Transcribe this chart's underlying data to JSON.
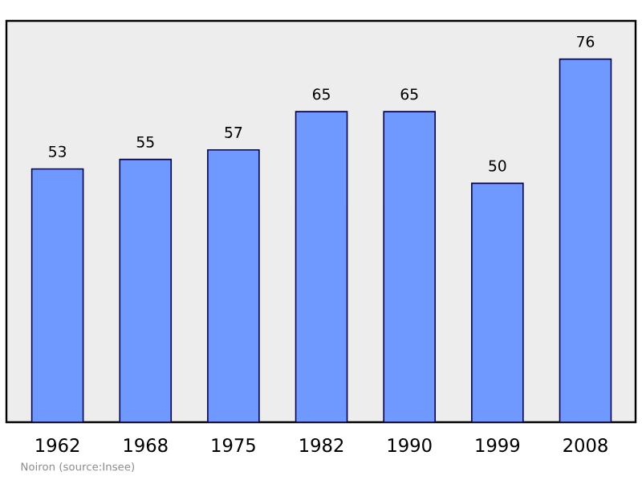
{
  "chart_data": {
    "type": "bar",
    "categories": [
      "1962",
      "1968",
      "1975",
      "1982",
      "1990",
      "1999",
      "2008"
    ],
    "values": [
      53,
      55,
      57,
      65,
      65,
      50,
      76
    ],
    "color": "#7099ff",
    "ylim": [
      0,
      84
    ],
    "data_labels": true,
    "tick_labels": "x",
    "annotations": [
      "Noiron    (source:Insee)"
    ]
  }
}
